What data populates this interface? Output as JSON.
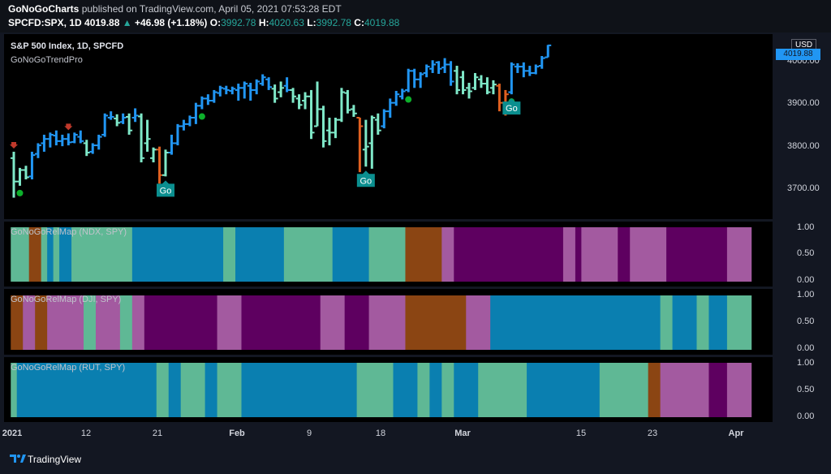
{
  "header": {
    "publisher": "GoNoGoCharts",
    "published_text": "published on TradingView.com, April 05, 2021 07:53:28 EDT",
    "symbol": "SPCFD:SPX, 1D",
    "last": "4019.88",
    "change": "+46.98 (+1.18%)",
    "o_label": "O:",
    "o_value": "3992.78",
    "h_label": "H:",
    "h_value": "4020.63",
    "l_label": "L:",
    "l_value": "3992.78",
    "c_label": "C:",
    "c_value": "4019.88"
  },
  "main_pane": {
    "title": "S&P 500 Index, 1D, SPCFD",
    "indicator": "GoNoGoTrendPro",
    "currency": "USD",
    "price_tag": "4019.88",
    "y_ticks": [
      "4000.00",
      "3900.00",
      "3800.00",
      "3700.00"
    ]
  },
  "sub_panes": [
    {
      "title": "GoNoGoRelMap (NDX, SPY)",
      "y_ticks": [
        "1.00",
        "0.50",
        "0.00"
      ]
    },
    {
      "title": "GoNoGoRelMap (DJI, SPY)",
      "y_ticks": [
        "1.00",
        "0.50",
        "0.00"
      ]
    },
    {
      "title": "GoNoGoRelMap (RUT, SPY)",
      "y_ticks": [
        "1.00",
        "0.50",
        "0.00"
      ]
    }
  ],
  "x_axis": {
    "labels": [
      "2021",
      "12",
      "21",
      "Feb",
      "9",
      "18",
      "Mar",
      "15",
      "23",
      "Apr"
    ]
  },
  "footer": {
    "brand": "TradingView"
  },
  "colors": {
    "go_strong": "#2196f3",
    "go_weak": "#7fe8c8",
    "nogo_strong": "#e06020",
    "nogo_weak": "#c0392b",
    "go_dot": "#0db02b",
    "go_label_bg": "#0b8f8f",
    "rel_go_strong": "#0a7fb0",
    "rel_go_weak": "#5fb895",
    "rel_nogo_strong": "#5e0060",
    "rel_nogo_weak": "#a35aa0",
    "rel_amber": "#8b4513"
  },
  "chart_data": [
    {
      "type": "ohlc",
      "title": "S&P 500 Index, 1D, SPCFD",
      "ylim": [
        3650,
        4050
      ],
      "y_ticks": [
        3700,
        3800,
        3900,
        4000
      ],
      "bars": [
        {
          "o": 3755,
          "h": 3770,
          "l": 3662,
          "c": 3700,
          "k": "gw"
        },
        {
          "o": 3700,
          "h": 3732,
          "l": 3690,
          "c": 3727,
          "k": "gw"
        },
        {
          "o": 3727,
          "h": 3737,
          "l": 3705,
          "c": 3710,
          "k": "gw"
        },
        {
          "o": 3712,
          "h": 3770,
          "l": 3705,
          "c": 3762,
          "k": "gs"
        },
        {
          "o": 3765,
          "h": 3790,
          "l": 3755,
          "c": 3785,
          "k": "gs"
        },
        {
          "o": 3790,
          "h": 3810,
          "l": 3770,
          "c": 3800,
          "k": "gs"
        },
        {
          "o": 3800,
          "h": 3815,
          "l": 3780,
          "c": 3810,
          "k": "gs"
        },
        {
          "o": 3808,
          "h": 3820,
          "l": 3785,
          "c": 3795,
          "k": "gs"
        },
        {
          "o": 3795,
          "h": 3810,
          "l": 3783,
          "c": 3800,
          "k": "gs"
        },
        {
          "o": 3800,
          "h": 3813,
          "l": 3785,
          "c": 3792,
          "k": "gs"
        },
        {
          "o": 3793,
          "h": 3815,
          "l": 3790,
          "c": 3810,
          "k": "gs"
        },
        {
          "o": 3805,
          "h": 3820,
          "l": 3790,
          "c": 3795,
          "k": "gs"
        },
        {
          "o": 3790,
          "h": 3798,
          "l": 3760,
          "c": 3768,
          "k": "gw"
        },
        {
          "o": 3770,
          "h": 3790,
          "l": 3765,
          "c": 3785,
          "k": "gs"
        },
        {
          "o": 3785,
          "h": 3810,
          "l": 3775,
          "c": 3805,
          "k": "gs"
        },
        {
          "o": 3810,
          "h": 3860,
          "l": 3805,
          "c": 3855,
          "k": "gs"
        },
        {
          "o": 3850,
          "h": 3865,
          "l": 3845,
          "c": 3852,
          "k": "gs"
        },
        {
          "o": 3848,
          "h": 3858,
          "l": 3830,
          "c": 3838,
          "k": "gw"
        },
        {
          "o": 3840,
          "h": 3860,
          "l": 3835,
          "c": 3850,
          "k": "gs"
        },
        {
          "o": 3852,
          "h": 3860,
          "l": 3810,
          "c": 3820,
          "k": "gw"
        },
        {
          "o": 3850,
          "h": 3872,
          "l": 3840,
          "c": 3855,
          "k": "gs"
        },
        {
          "o": 3853,
          "h": 3860,
          "l": 3745,
          "c": 3755,
          "k": "gw"
        },
        {
          "o": 3790,
          "h": 3845,
          "l": 3770,
          "c": 3800,
          "k": "gw"
        },
        {
          "o": 3755,
          "h": 3780,
          "l": 3745,
          "c": 3775,
          "k": "gw"
        },
        {
          "o": 3775,
          "h": 3782,
          "l": 3695,
          "c": 3715,
          "k": "ns"
        },
        {
          "o": 3715,
          "h": 3775,
          "l": 3712,
          "c": 3768,
          "k": "gw"
        },
        {
          "o": 3768,
          "h": 3810,
          "l": 3763,
          "c": 3790,
          "k": "gs"
        },
        {
          "o": 3790,
          "h": 3835,
          "l": 3785,
          "c": 3830,
          "k": "gs"
        },
        {
          "o": 3830,
          "h": 3845,
          "l": 3820,
          "c": 3835,
          "k": "gs"
        },
        {
          "o": 3835,
          "h": 3855,
          "l": 3830,
          "c": 3850,
          "k": "gs"
        },
        {
          "o": 3850,
          "h": 3885,
          "l": 3835,
          "c": 3878,
          "k": "gs"
        },
        {
          "o": 3878,
          "h": 3900,
          "l": 3870,
          "c": 3895,
          "k": "gs"
        },
        {
          "o": 3895,
          "h": 3905,
          "l": 3880,
          "c": 3890,
          "k": "gs"
        },
        {
          "o": 3890,
          "h": 3915,
          "l": 3885,
          "c": 3910,
          "k": "gs"
        },
        {
          "o": 3908,
          "h": 3925,
          "l": 3900,
          "c": 3920,
          "k": "gs"
        },
        {
          "o": 3918,
          "h": 3925,
          "l": 3905,
          "c": 3915,
          "k": "gs"
        },
        {
          "o": 3913,
          "h": 3923,
          "l": 3905,
          "c": 3918,
          "k": "gs"
        },
        {
          "o": 3915,
          "h": 3930,
          "l": 3890,
          "c": 3920,
          "k": "gs"
        },
        {
          "o": 3920,
          "h": 3935,
          "l": 3895,
          "c": 3930,
          "k": "gs"
        },
        {
          "o": 3925,
          "h": 3932,
          "l": 3890,
          "c": 3915,
          "k": "gs"
        },
        {
          "o": 3915,
          "h": 3940,
          "l": 3905,
          "c": 3935,
          "k": "gs"
        },
        {
          "o": 3930,
          "h": 3952,
          "l": 3925,
          "c": 3945,
          "k": "gs"
        },
        {
          "o": 3940,
          "h": 3945,
          "l": 3915,
          "c": 3922,
          "k": "gs"
        },
        {
          "o": 3918,
          "h": 3928,
          "l": 3885,
          "c": 3895,
          "k": "gw"
        },
        {
          "o": 3910,
          "h": 3935,
          "l": 3898,
          "c": 3920,
          "k": "gw"
        },
        {
          "o": 3925,
          "h": 3945,
          "l": 3910,
          "c": 3915,
          "k": "gs"
        },
        {
          "o": 3915,
          "h": 3920,
          "l": 3885,
          "c": 3900,
          "k": "gw"
        },
        {
          "o": 3895,
          "h": 3905,
          "l": 3870,
          "c": 3880,
          "k": "gw"
        },
        {
          "o": 3890,
          "h": 3910,
          "l": 3870,
          "c": 3900,
          "k": "gw"
        },
        {
          "o": 3900,
          "h": 3915,
          "l": 3800,
          "c": 3815,
          "k": "gw"
        },
        {
          "o": 3830,
          "h": 3935,
          "l": 3830,
          "c": 3870,
          "k": "gw"
        },
        {
          "o": 3870,
          "h": 3878,
          "l": 3780,
          "c": 3795,
          "k": "gw"
        },
        {
          "o": 3820,
          "h": 3850,
          "l": 3785,
          "c": 3815,
          "k": "gw"
        },
        {
          "o": 3815,
          "h": 3850,
          "l": 3802,
          "c": 3845,
          "k": "gw"
        },
        {
          "o": 3845,
          "h": 3920,
          "l": 3840,
          "c": 3910,
          "k": "gw"
        },
        {
          "o": 3908,
          "h": 3915,
          "l": 3860,
          "c": 3868,
          "k": "gw"
        },
        {
          "o": 3870,
          "h": 3880,
          "l": 3852,
          "c": 3860,
          "k": "gw"
        },
        {
          "o": 3850,
          "h": 3850,
          "l": 3722,
          "c": 3830,
          "k": "ns"
        },
        {
          "o": 3775,
          "h": 3845,
          "l": 3735,
          "c": 3782,
          "k": "gw"
        },
        {
          "o": 3790,
          "h": 3855,
          "l": 3730,
          "c": 3850,
          "k": "gw"
        },
        {
          "o": 3845,
          "h": 3860,
          "l": 3810,
          "c": 3820,
          "k": "gw"
        },
        {
          "o": 3830,
          "h": 3870,
          "l": 3825,
          "c": 3865,
          "k": "gs"
        },
        {
          "o": 3865,
          "h": 3895,
          "l": 3850,
          "c": 3885,
          "k": "gs"
        },
        {
          "o": 3885,
          "h": 3913,
          "l": 3878,
          "c": 3905,
          "k": "gs"
        },
        {
          "o": 3900,
          "h": 3918,
          "l": 3893,
          "c": 3912,
          "k": "gs"
        },
        {
          "o": 3915,
          "h": 3965,
          "l": 3910,
          "c": 3960,
          "k": "gs"
        },
        {
          "o": 3960,
          "h": 3965,
          "l": 3920,
          "c": 3940,
          "k": "gs"
        },
        {
          "o": 3940,
          "h": 3957,
          "l": 3920,
          "c": 3952,
          "k": "gs"
        },
        {
          "o": 3955,
          "h": 3975,
          "l": 3945,
          "c": 3970,
          "k": "gs"
        },
        {
          "o": 3965,
          "h": 3985,
          "l": 3955,
          "c": 3975,
          "k": "gs"
        },
        {
          "o": 3980,
          "h": 3983,
          "l": 3953,
          "c": 3965,
          "k": "gs"
        },
        {
          "o": 3968,
          "h": 3990,
          "l": 3955,
          "c": 3975,
          "k": "gs"
        },
        {
          "o": 3975,
          "h": 3983,
          "l": 3925,
          "c": 3935,
          "k": "gs"
        },
        {
          "o": 3960,
          "h": 3972,
          "l": 3905,
          "c": 3915,
          "k": "gw"
        },
        {
          "o": 3945,
          "h": 3960,
          "l": 3905,
          "c": 3915,
          "k": "gw"
        },
        {
          "o": 3920,
          "h": 3932,
          "l": 3895,
          "c": 3912,
          "k": "gw"
        },
        {
          "o": 3920,
          "h": 3955,
          "l": 3915,
          "c": 3945,
          "k": "gw"
        },
        {
          "o": 3940,
          "h": 3950,
          "l": 3920,
          "c": 3930,
          "k": "gw"
        },
        {
          "o": 3930,
          "h": 3945,
          "l": 3905,
          "c": 3910,
          "k": "gw"
        },
        {
          "o": 3920,
          "h": 3938,
          "l": 3905,
          "c": 3928,
          "k": "gw"
        },
        {
          "o": 3925,
          "h": 3930,
          "l": 3865,
          "c": 3885,
          "k": "ns"
        },
        {
          "o": 3885,
          "h": 3915,
          "l": 3855,
          "c": 3905,
          "k": "ns"
        },
        {
          "o": 3910,
          "h": 3980,
          "l": 3905,
          "c": 3975,
          "k": "gs"
        },
        {
          "o": 3970,
          "h": 3978,
          "l": 3955,
          "c": 3970,
          "k": "gs"
        },
        {
          "o": 3970,
          "h": 3980,
          "l": 3945,
          "c": 3960,
          "k": "gs"
        },
        {
          "o": 3960,
          "h": 3972,
          "l": 3948,
          "c": 3955,
          "k": "gs"
        },
        {
          "o": 3955,
          "h": 3975,
          "l": 3952,
          "c": 3970,
          "k": "gs"
        },
        {
          "o": 3972,
          "h": 3995,
          "l": 3965,
          "c": 3990,
          "k": "gs"
        },
        {
          "o": 3992,
          "h": 4021,
          "l": 3992,
          "c": 4020,
          "k": "gs"
        }
      ],
      "markers": [
        {
          "i": 0,
          "type": "nogo-arrow"
        },
        {
          "i": 1,
          "type": "go-dot"
        },
        {
          "i": 9,
          "type": "nogo-arrow"
        },
        {
          "i": 25,
          "type": "go-label",
          "text": "Go"
        },
        {
          "i": 31,
          "type": "go-dot"
        },
        {
          "i": 58,
          "type": "go-label",
          "text": "Go"
        },
        {
          "i": 65,
          "type": "go-dot"
        },
        {
          "i": 82,
          "type": "go-dot"
        },
        {
          "i": 82,
          "type": "go-label",
          "text": "Go"
        }
      ]
    },
    {
      "type": "heatmap",
      "title": "GoNoGoRelMap (NDX, SPY)",
      "ylim": [
        0,
        1
      ],
      "segments": [
        {
          "from": 0,
          "to": 3,
          "c": "gw"
        },
        {
          "from": 3,
          "to": 5,
          "c": "am"
        },
        {
          "from": 5,
          "to": 6,
          "c": "gw"
        },
        {
          "from": 6,
          "to": 7,
          "c": "gs"
        },
        {
          "from": 7,
          "to": 8,
          "c": "gw"
        },
        {
          "from": 8,
          "to": 10,
          "c": "gs"
        },
        {
          "from": 10,
          "to": 20,
          "c": "gw"
        },
        {
          "from": 20,
          "to": 35,
          "c": "gs"
        },
        {
          "from": 35,
          "to": 37,
          "c": "gw"
        },
        {
          "from": 37,
          "to": 45,
          "c": "gs"
        },
        {
          "from": 45,
          "to": 53,
          "c": "gw"
        },
        {
          "from": 53,
          "to": 59,
          "c": "gs"
        },
        {
          "from": 59,
          "to": 65,
          "c": "gw"
        },
        {
          "from": 65,
          "to": 71,
          "c": "am"
        },
        {
          "from": 71,
          "to": 73,
          "c": "nw"
        },
        {
          "from": 73,
          "to": 91,
          "c": "ns"
        },
        {
          "from": 91,
          "to": 93,
          "c": "nw"
        },
        {
          "from": 93,
          "to": 94,
          "c": "ns"
        },
        {
          "from": 94,
          "to": 100,
          "c": "nw"
        },
        {
          "from": 100,
          "to": 102,
          "c": "ns"
        },
        {
          "from": 102,
          "to": 108,
          "c": "nw"
        },
        {
          "from": 108,
          "to": 118,
          "c": "ns"
        },
        {
          "from": 118,
          "to": 122,
          "c": "nw"
        }
      ]
    },
    {
      "type": "heatmap",
      "title": "GoNoGoRelMap (DJI, SPY)",
      "ylim": [
        0,
        1
      ],
      "segments": [
        {
          "from": 0,
          "to": 2,
          "c": "am"
        },
        {
          "from": 2,
          "to": 4,
          "c": "nw"
        },
        {
          "from": 4,
          "to": 6,
          "c": "am"
        },
        {
          "from": 6,
          "to": 12,
          "c": "nw"
        },
        {
          "from": 12,
          "to": 14,
          "c": "gw"
        },
        {
          "from": 14,
          "to": 18,
          "c": "nw"
        },
        {
          "from": 18,
          "to": 20,
          "c": "gw"
        },
        {
          "from": 20,
          "to": 22,
          "c": "nw"
        },
        {
          "from": 22,
          "to": 34,
          "c": "ns"
        },
        {
          "from": 34,
          "to": 38,
          "c": "nw"
        },
        {
          "from": 38,
          "to": 51,
          "c": "ns"
        },
        {
          "from": 51,
          "to": 55,
          "c": "nw"
        },
        {
          "from": 55,
          "to": 59,
          "c": "ns"
        },
        {
          "from": 59,
          "to": 65,
          "c": "nw"
        },
        {
          "from": 65,
          "to": 75,
          "c": "am"
        },
        {
          "from": 75,
          "to": 79,
          "c": "nw"
        },
        {
          "from": 79,
          "to": 107,
          "c": "gs"
        },
        {
          "from": 107,
          "to": 109,
          "c": "gw"
        },
        {
          "from": 109,
          "to": 113,
          "c": "gs"
        },
        {
          "from": 113,
          "to": 115,
          "c": "gw"
        },
        {
          "from": 115,
          "to": 118,
          "c": "gs"
        },
        {
          "from": 118,
          "to": 122,
          "c": "gw"
        }
      ]
    },
    {
      "type": "heatmap",
      "title": "GoNoGoRelMap (RUT, SPY)",
      "ylim": [
        0,
        1
      ],
      "segments": [
        {
          "from": 0,
          "to": 1,
          "c": "gw"
        },
        {
          "from": 1,
          "to": 24,
          "c": "gs"
        },
        {
          "from": 24,
          "to": 26,
          "c": "gw"
        },
        {
          "from": 26,
          "to": 28,
          "c": "gs"
        },
        {
          "from": 28,
          "to": 32,
          "c": "gw"
        },
        {
          "from": 32,
          "to": 34,
          "c": "gs"
        },
        {
          "from": 34,
          "to": 38,
          "c": "gw"
        },
        {
          "from": 38,
          "to": 57,
          "c": "gs"
        },
        {
          "from": 57,
          "to": 63,
          "c": "gw"
        },
        {
          "from": 63,
          "to": 67,
          "c": "gs"
        },
        {
          "from": 67,
          "to": 69,
          "c": "gw"
        },
        {
          "from": 69,
          "to": 71,
          "c": "gs"
        },
        {
          "from": 71,
          "to": 73,
          "c": "gw"
        },
        {
          "from": 73,
          "to": 77,
          "c": "gs"
        },
        {
          "from": 77,
          "to": 85,
          "c": "gw"
        },
        {
          "from": 85,
          "to": 97,
          "c": "gs"
        },
        {
          "from": 97,
          "to": 105,
          "c": "gw"
        },
        {
          "from": 105,
          "to": 107,
          "c": "am"
        },
        {
          "from": 107,
          "to": 115,
          "c": "nw"
        },
        {
          "from": 115,
          "to": 118,
          "c": "ns"
        },
        {
          "from": 118,
          "to": 122,
          "c": "nw"
        }
      ]
    }
  ]
}
